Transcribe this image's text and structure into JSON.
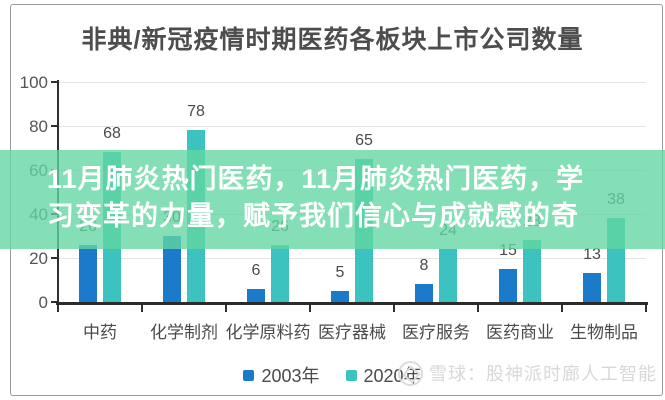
{
  "title": "非典/新冠疫情时期医药各板块上市公司数量",
  "overlay": {
    "line1": "11月肺炎热门医药，11月肺炎热门医药，学",
    "line2": "习变革的力量，赋予我们信心与成就感的奇",
    "band_color": "#61d6a1"
  },
  "chart_data": {
    "type": "bar",
    "title": "非典/新冠疫情时期医药各板块上市公司数量",
    "categories": [
      "中药",
      "化学制剂",
      "化学原料药",
      "医疗器械",
      "医疗服务",
      "医药商业",
      "生物制品"
    ],
    "series": [
      {
        "name": "2003年",
        "color": "#1b7ac9",
        "values": [
          26,
          30,
          6,
          5,
          8,
          15,
          13
        ]
      },
      {
        "name": "2020年",
        "color": "#3cc2bf",
        "values": [
          68,
          78,
          26,
          65,
          24,
          28,
          38
        ]
      }
    ],
    "visible_value_labels": [
      68,
      78,
      6,
      65,
      5,
      8,
      15,
      13,
      38,
      24
    ],
    "xlabel": "",
    "ylabel": "",
    "ylim": [
      0,
      100
    ],
    "yticks": [
      0,
      20,
      40,
      60,
      80,
      100
    ],
    "grid": true,
    "legend_position": "bottom"
  },
  "legend": {
    "items": [
      {
        "label": "2003年",
        "color": "#1b7ac9"
      },
      {
        "label": "2020年",
        "color": "#3cc2bf"
      }
    ]
  },
  "watermark": {
    "logo": "snowball-circle-icon",
    "text": "雪球：股神派时廊人工智能"
  }
}
